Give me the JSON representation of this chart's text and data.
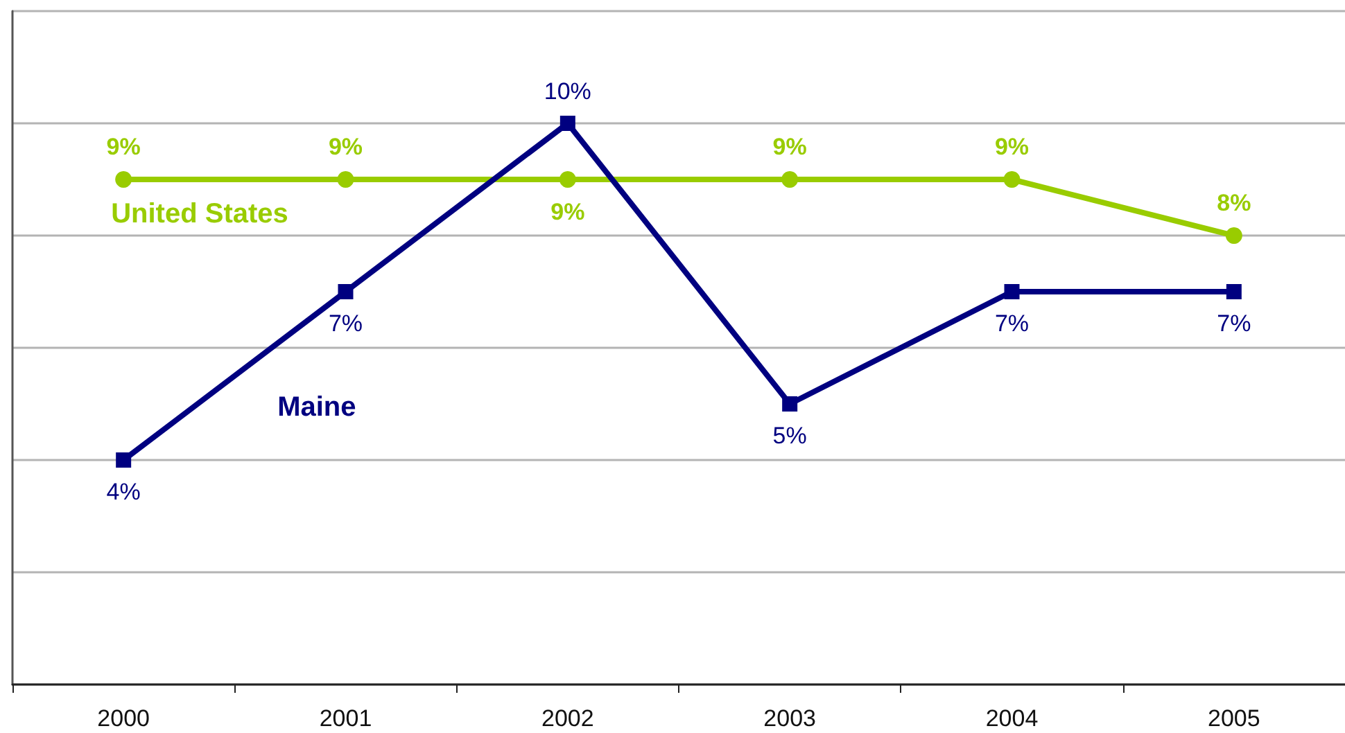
{
  "chart_data": {
    "type": "line",
    "categories": [
      "2000",
      "2001",
      "2002",
      "2003",
      "2004",
      "2005"
    ],
    "series": [
      {
        "name": "United States",
        "color": "#99cc00",
        "marker": "circle",
        "values": [
          9,
          9,
          9,
          9,
          9,
          8
        ],
        "value_labels": [
          "9%",
          "9%",
          "9%",
          "9%",
          "9%",
          "8%"
        ]
      },
      {
        "name": "Maine",
        "color": "#000080",
        "marker": "square",
        "values": [
          4,
          7,
          10,
          5,
          7,
          7
        ],
        "value_labels": [
          "4%",
          "7%",
          "10%",
          "5%",
          "7%",
          "7%"
        ]
      }
    ],
    "ylim": [
      0,
      12
    ],
    "yticks": [
      {
        "value": 0,
        "label": null
      },
      {
        "value": 2,
        "label": null
      },
      {
        "value": 4,
        "label": null
      },
      {
        "value": 6,
        "label": null
      },
      {
        "value": 8,
        "label": null
      },
      {
        "value": 10,
        "label": null
      },
      {
        "value": 12,
        "label": null
      }
    ],
    "grid": "y",
    "tick_labels": "x",
    "line_style": "solid"
  }
}
